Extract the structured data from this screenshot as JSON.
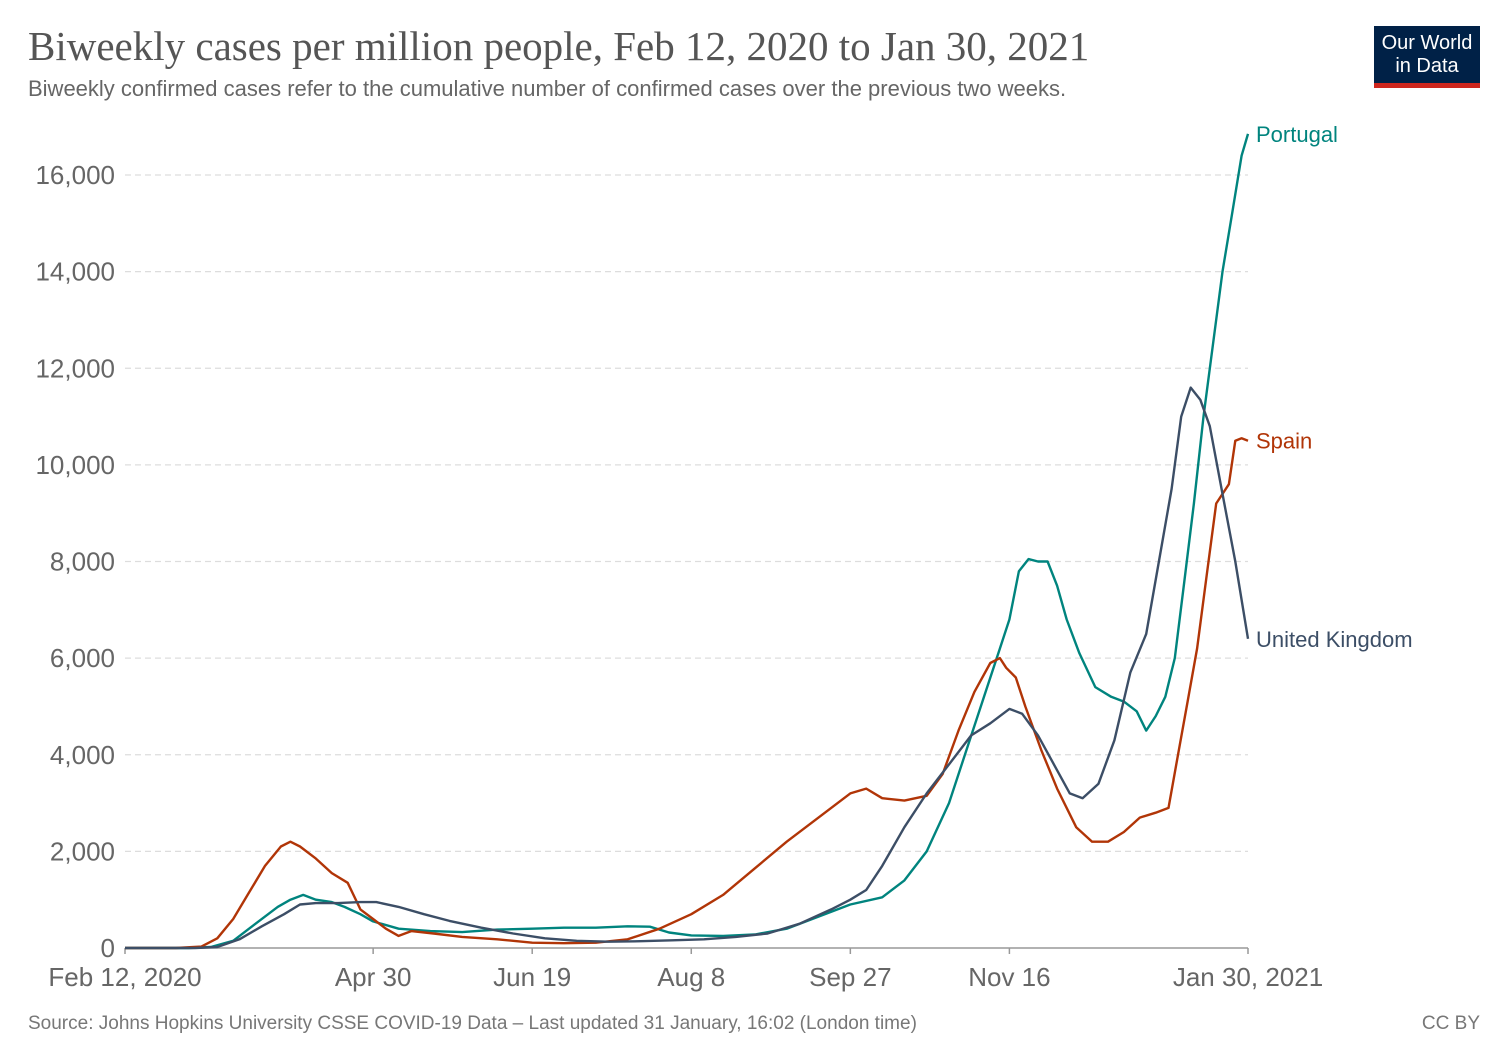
{
  "header": {
    "title": "Biweekly cases per million people, Feb 12, 2020 to Jan 30, 2021",
    "subtitle": "Biweekly confirmed cases refer to the cumulative number of confirmed cases over the previous two weeks."
  },
  "logo": {
    "line1": "Our World",
    "line2": "in Data",
    "bg_color": "#002147",
    "accent_color": "#ce261e"
  },
  "footer": {
    "source": "Source: Johns Hopkins University CSSE COVID-19 Data – Last updated 31 January, 16:02 (London time)",
    "license": "CC BY"
  },
  "chart_data": {
    "type": "line",
    "title": "Biweekly cases per million people, Feb 12, 2020 to Jan 30, 2021",
    "xlabel": "",
    "ylabel": "",
    "x_range": [
      "2020-02-12",
      "2021-01-30"
    ],
    "ylim": [
      0,
      16000
    ],
    "grid": "horizontal dashed",
    "legend": "labels at line ends (right)",
    "x_ticks": [
      {
        "date": "2020-02-12",
        "label": "Feb 12, 2020"
      },
      {
        "date": "2020-04-30",
        "label": "Apr 30"
      },
      {
        "date": "2020-06-19",
        "label": "Jun 19"
      },
      {
        "date": "2020-08-08",
        "label": "Aug 8"
      },
      {
        "date": "2020-09-27",
        "label": "Sep 27"
      },
      {
        "date": "2020-11-16",
        "label": "Nov 16"
      },
      {
        "date": "2021-01-30",
        "label": "Jan 30, 2021"
      }
    ],
    "y_ticks": [
      {
        "value": 0,
        "label": "0"
      },
      {
        "value": 2000,
        "label": "2,000"
      },
      {
        "value": 4000,
        "label": "4,000"
      },
      {
        "value": 6000,
        "label": "6,000"
      },
      {
        "value": 8000,
        "label": "8,000"
      },
      {
        "value": 10000,
        "label": "10,000"
      },
      {
        "value": 12000,
        "label": "12,000"
      },
      {
        "value": 14000,
        "label": "14,000"
      },
      {
        "value": 16000,
        "label": "16,000"
      }
    ],
    "series": [
      {
        "name": "Portugal",
        "color": "#00847e",
        "points": [
          [
            "2020-02-12",
            0
          ],
          [
            "2020-03-03",
            0
          ],
          [
            "2020-03-10",
            20
          ],
          [
            "2020-03-17",
            150
          ],
          [
            "2020-03-24",
            500
          ],
          [
            "2020-03-31",
            850
          ],
          [
            "2020-04-04",
            1000
          ],
          [
            "2020-04-08",
            1100
          ],
          [
            "2020-04-12",
            1000
          ],
          [
            "2020-04-17",
            950
          ],
          [
            "2020-04-21",
            850
          ],
          [
            "2020-04-26",
            700
          ],
          [
            "2020-04-30",
            550
          ],
          [
            "2020-05-08",
            400
          ],
          [
            "2020-05-18",
            350
          ],
          [
            "2020-05-28",
            330
          ],
          [
            "2020-06-08",
            380
          ],
          [
            "2020-06-19",
            400
          ],
          [
            "2020-06-29",
            420
          ],
          [
            "2020-07-09",
            420
          ],
          [
            "2020-07-19",
            450
          ],
          [
            "2020-07-26",
            440
          ],
          [
            "2020-08-01",
            320
          ],
          [
            "2020-08-08",
            260
          ],
          [
            "2020-08-18",
            250
          ],
          [
            "2020-08-28",
            280
          ],
          [
            "2020-09-07",
            400
          ],
          [
            "2020-09-17",
            650
          ],
          [
            "2020-09-27",
            900
          ],
          [
            "2020-10-07",
            1050
          ],
          [
            "2020-10-14",
            1400
          ],
          [
            "2020-10-21",
            2000
          ],
          [
            "2020-10-28",
            3000
          ],
          [
            "2020-11-02",
            4000
          ],
          [
            "2020-11-08",
            5200
          ],
          [
            "2020-11-13",
            6200
          ],
          [
            "2020-11-16",
            6800
          ],
          [
            "2020-11-19",
            7800
          ],
          [
            "2020-11-22",
            8050
          ],
          [
            "2020-11-25",
            8000
          ],
          [
            "2020-11-28",
            8000
          ],
          [
            "2020-12-01",
            7500
          ],
          [
            "2020-12-04",
            6800
          ],
          [
            "2020-12-08",
            6100
          ],
          [
            "2020-12-13",
            5400
          ],
          [
            "2020-12-18",
            5200
          ],
          [
            "2020-12-22",
            5100
          ],
          [
            "2020-12-26",
            4900
          ],
          [
            "2020-12-29",
            4500
          ],
          [
            "2021-01-01",
            4800
          ],
          [
            "2021-01-04",
            5200
          ],
          [
            "2021-01-07",
            6000
          ],
          [
            "2021-01-10",
            7600
          ],
          [
            "2021-01-13",
            9200
          ],
          [
            "2021-01-16",
            11000
          ],
          [
            "2021-01-19",
            12500
          ],
          [
            "2021-01-22",
            14000
          ],
          [
            "2021-01-25",
            15200
          ],
          [
            "2021-01-28",
            16400
          ],
          [
            "2021-01-30",
            16850
          ]
        ]
      },
      {
        "name": "Spain",
        "color": "#b13507",
        "points": [
          [
            "2020-02-12",
            0
          ],
          [
            "2020-02-28",
            0
          ],
          [
            "2020-03-07",
            30
          ],
          [
            "2020-03-12",
            200
          ],
          [
            "2020-03-17",
            600
          ],
          [
            "2020-03-22",
            1150
          ],
          [
            "2020-03-27",
            1700
          ],
          [
            "2020-04-01",
            2100
          ],
          [
            "2020-04-04",
            2200
          ],
          [
            "2020-04-07",
            2100
          ],
          [
            "2020-04-12",
            1850
          ],
          [
            "2020-04-17",
            1550
          ],
          [
            "2020-04-22",
            1350
          ],
          [
            "2020-04-26",
            800
          ],
          [
            "2020-04-30",
            600
          ],
          [
            "2020-05-04",
            400
          ],
          [
            "2020-05-08",
            250
          ],
          [
            "2020-05-12",
            350
          ],
          [
            "2020-05-19",
            300
          ],
          [
            "2020-05-28",
            230
          ],
          [
            "2020-06-08",
            180
          ],
          [
            "2020-06-19",
            110
          ],
          [
            "2020-06-29",
            100
          ],
          [
            "2020-07-09",
            110
          ],
          [
            "2020-07-19",
            180
          ],
          [
            "2020-07-29",
            400
          ],
          [
            "2020-08-08",
            700
          ],
          [
            "2020-08-18",
            1100
          ],
          [
            "2020-08-28",
            1650
          ],
          [
            "2020-09-07",
            2200
          ],
          [
            "2020-09-17",
            2700
          ],
          [
            "2020-09-27",
            3200
          ],
          [
            "2020-10-02",
            3300
          ],
          [
            "2020-10-07",
            3100
          ],
          [
            "2020-10-14",
            3050
          ],
          [
            "2020-10-21",
            3150
          ],
          [
            "2020-10-26",
            3600
          ],
          [
            "2020-10-31",
            4500
          ],
          [
            "2020-11-05",
            5300
          ],
          [
            "2020-11-10",
            5900
          ],
          [
            "2020-11-13",
            6000
          ],
          [
            "2020-11-15",
            5800
          ],
          [
            "2020-11-18",
            5600
          ],
          [
            "2020-11-21",
            5000
          ],
          [
            "2020-11-26",
            4100
          ],
          [
            "2020-12-01",
            3300
          ],
          [
            "2020-12-07",
            2500
          ],
          [
            "2020-12-12",
            2200
          ],
          [
            "2020-12-17",
            2200
          ],
          [
            "2020-12-22",
            2400
          ],
          [
            "2020-12-27",
            2700
          ],
          [
            "2021-01-01",
            2800
          ],
          [
            "2021-01-05",
            2900
          ],
          [
            "2021-01-08",
            4000
          ],
          [
            "2021-01-11",
            5100
          ],
          [
            "2021-01-14",
            6200
          ],
          [
            "2021-01-17",
            7700
          ],
          [
            "2021-01-20",
            9200
          ],
          [
            "2021-01-24",
            9600
          ],
          [
            "2021-01-26",
            10500
          ],
          [
            "2021-01-28",
            10550
          ],
          [
            "2021-01-30",
            10500
          ]
        ]
      },
      {
        "name": "United Kingdom",
        "color": "#3c4e66",
        "points": [
          [
            "2020-02-12",
            0
          ],
          [
            "2020-03-05",
            0
          ],
          [
            "2020-03-12",
            20
          ],
          [
            "2020-03-19",
            180
          ],
          [
            "2020-03-26",
            450
          ],
          [
            "2020-04-02",
            700
          ],
          [
            "2020-04-07",
            900
          ],
          [
            "2020-04-12",
            930
          ],
          [
            "2020-04-19",
            930
          ],
          [
            "2020-04-26",
            950
          ],
          [
            "2020-05-01",
            950
          ],
          [
            "2020-05-08",
            850
          ],
          [
            "2020-05-16",
            700
          ],
          [
            "2020-05-24",
            560
          ],
          [
            "2020-06-03",
            420
          ],
          [
            "2020-06-13",
            300
          ],
          [
            "2020-06-23",
            200
          ],
          [
            "2020-07-03",
            150
          ],
          [
            "2020-07-13",
            130
          ],
          [
            "2020-07-23",
            140
          ],
          [
            "2020-08-02",
            160
          ],
          [
            "2020-08-12",
            180
          ],
          [
            "2020-08-22",
            230
          ],
          [
            "2020-09-01",
            300
          ],
          [
            "2020-09-11",
            500
          ],
          [
            "2020-09-21",
            800
          ],
          [
            "2020-09-27",
            1000
          ],
          [
            "2020-10-02",
            1200
          ],
          [
            "2020-10-07",
            1700
          ],
          [
            "2020-10-14",
            2500
          ],
          [
            "2020-10-21",
            3200
          ],
          [
            "2020-10-28",
            3800
          ],
          [
            "2020-11-04",
            4400
          ],
          [
            "2020-11-10",
            4650
          ],
          [
            "2020-11-16",
            4950
          ],
          [
            "2020-11-20",
            4850
          ],
          [
            "2020-11-25",
            4400
          ],
          [
            "2020-11-30",
            3800
          ],
          [
            "2020-12-05",
            3200
          ],
          [
            "2020-12-09",
            3100
          ],
          [
            "2020-12-14",
            3400
          ],
          [
            "2020-12-19",
            4300
          ],
          [
            "2020-12-24",
            5700
          ],
          [
            "2020-12-29",
            6500
          ],
          [
            "2021-01-02",
            8000
          ],
          [
            "2021-01-06",
            9500
          ],
          [
            "2021-01-09",
            11000
          ],
          [
            "2021-01-12",
            11600
          ],
          [
            "2021-01-15",
            11350
          ],
          [
            "2021-01-18",
            10800
          ],
          [
            "2021-01-22",
            9400
          ],
          [
            "2021-01-26",
            8000
          ],
          [
            "2021-01-30",
            6400
          ]
        ]
      }
    ]
  }
}
